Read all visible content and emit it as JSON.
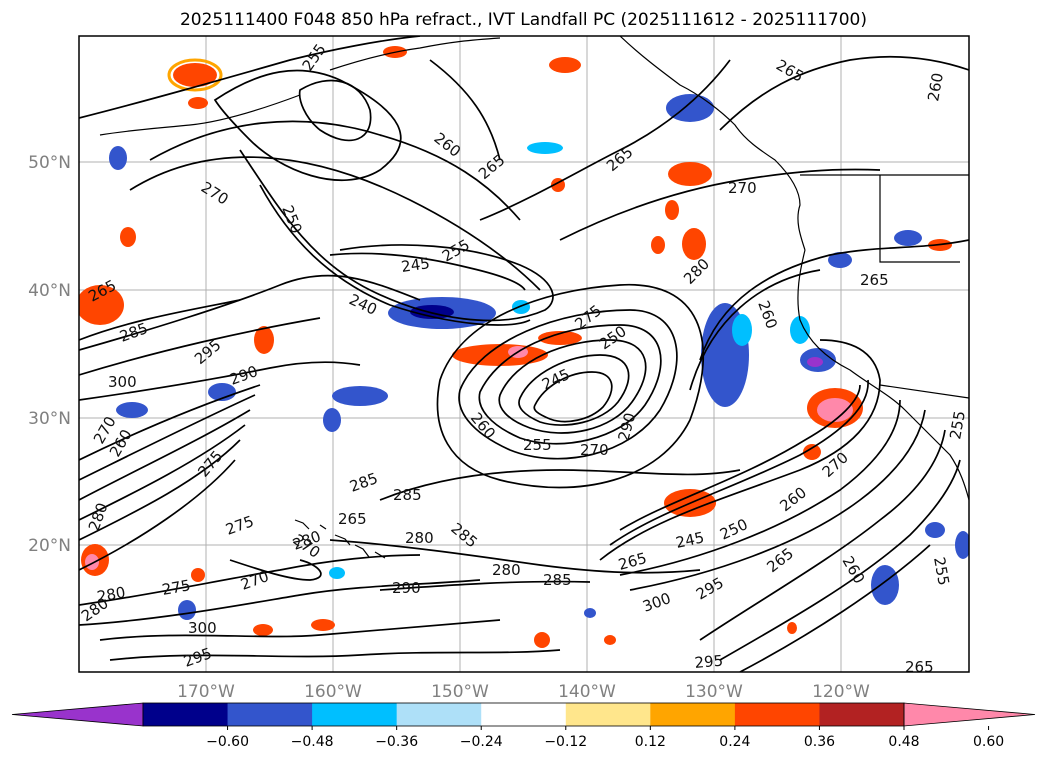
{
  "title": "2025111400 F048 850 hPa refract., IVT Landfall PC (2025111612 - 2025111700)",
  "latitude_labels": [
    "50°N",
    "40°N",
    "30°N",
    "20°N"
  ],
  "longitude_labels": [
    "170°W",
    "160°W",
    "150°W",
    "140°W",
    "130°W",
    "120°W"
  ],
  "colorbar": {
    "tick_labels": [
      "−0.60",
      "−0.48",
      "−0.36",
      "−0.24",
      "−0.12",
      "0.12",
      "0.24",
      "0.36",
      "0.48",
      "0.60"
    ],
    "colors": [
      "#9933cc",
      "#00008b",
      "#3355cc",
      "#00bfff",
      "#aee0f8",
      "#ffffff",
      "#ffe68c",
      "#ffa500",
      "#ff4500",
      "#b22222",
      "#ff88aa"
    ],
    "under_color": "#9933cc",
    "over_color": "#ff88aa"
  },
  "contour_labels": [
    "255",
    "260",
    "265",
    "265",
    "265",
    "260",
    "270",
    "270",
    "250",
    "245",
    "255",
    "240",
    "265",
    "280",
    "265",
    "260",
    "285",
    "295",
    "300",
    "290",
    "275",
    "250",
    "245",
    "255",
    "270",
    "290",
    "260",
    "285",
    "285",
    "275",
    "275",
    "265",
    "270",
    "280",
    "285",
    "280",
    "290",
    "280",
    "285",
    "265",
    "245",
    "250",
    "260",
    "270",
    "275",
    "270",
    "280",
    "300",
    "295",
    "295",
    "265",
    "260",
    "255",
    "295",
    "300",
    "280",
    "280",
    "270",
    "260",
    "265",
    "255"
  ],
  "colors": {
    "contour": "#000000",
    "coastline": "#000000",
    "gridline": "#b0b0b0",
    "map_frame": "#000000"
  }
}
